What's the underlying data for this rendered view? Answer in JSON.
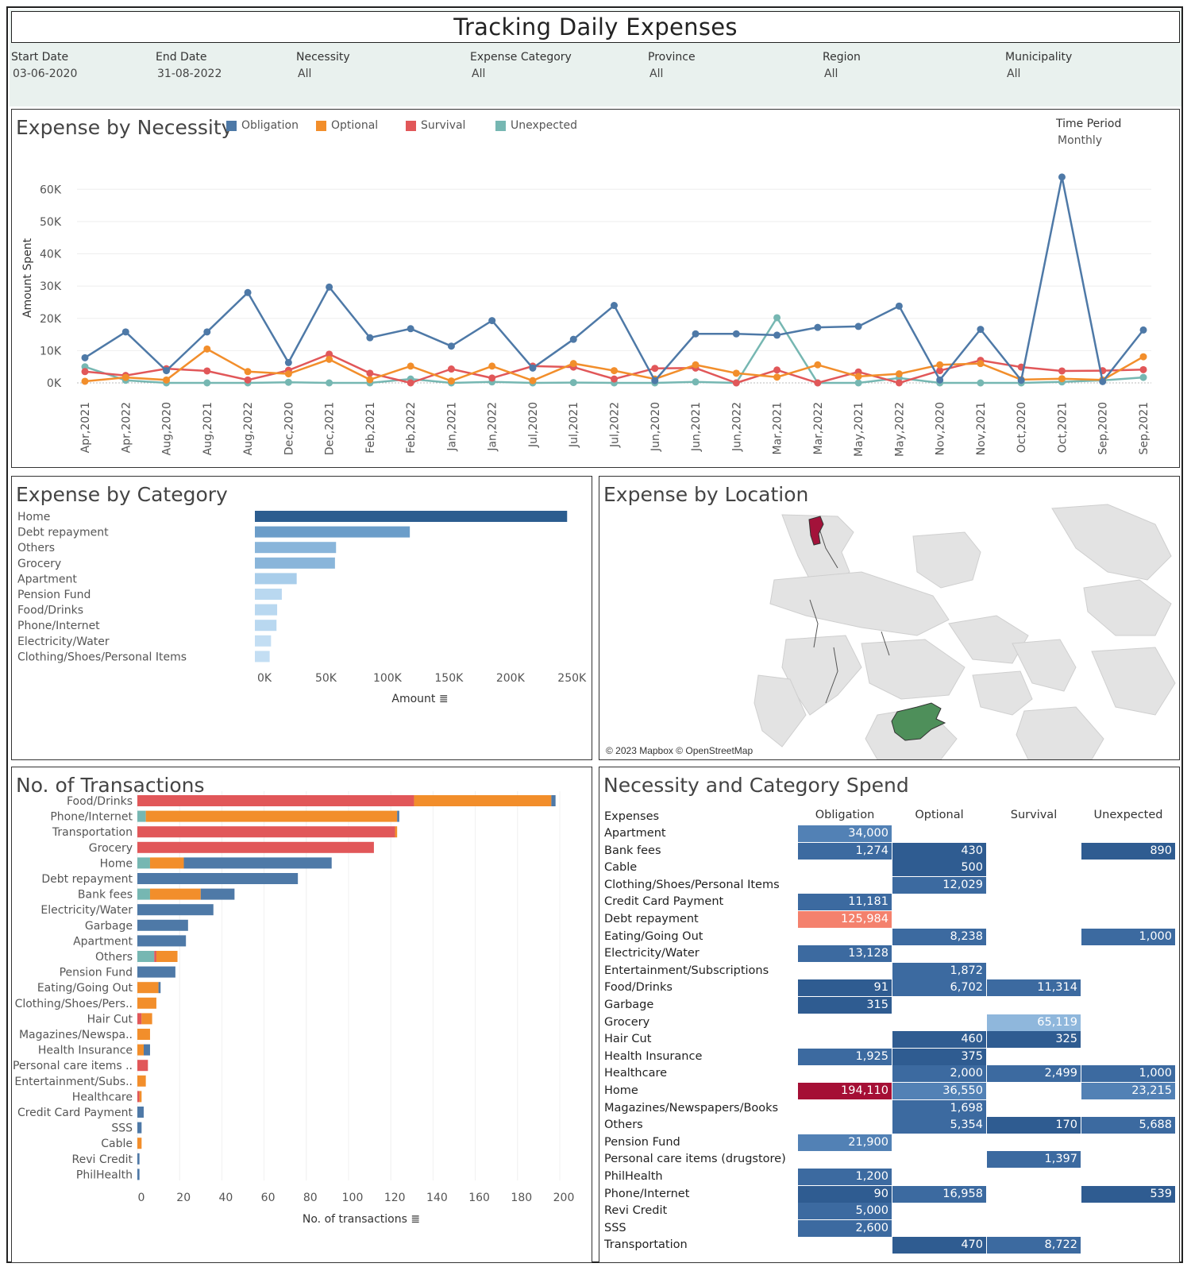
{
  "header": {
    "title": "Tracking Daily Expenses",
    "filters": [
      {
        "label": "Start Date",
        "value": "03-06-2020"
      },
      {
        "label": "End Date",
        "value": "31-08-2022"
      },
      {
        "label": "Necessity",
        "value": "All"
      },
      {
        "label": "Expense Category",
        "value": "All"
      },
      {
        "label": "Province",
        "value": "All"
      },
      {
        "label": "Region",
        "value": "All"
      },
      {
        "label": "Municipality",
        "value": "All"
      }
    ]
  },
  "colors": {
    "Obligation": "#4e79a7",
    "Optional": "#f28e2b",
    "Survival": "#e15759",
    "Unexpected": "#76b7b2"
  },
  "necessity_panel": {
    "title": "Expense by Necessity",
    "legend": [
      "Obligation",
      "Optional",
      "Survival",
      "Unexpected"
    ],
    "time_period_label": "Time Period",
    "time_period_value": "Monthly"
  },
  "category_panel": {
    "title": "Expense by Category"
  },
  "location_panel": {
    "title": "Expense by Location",
    "attribution": "© 2023 Mapbox © OpenStreetMap"
  },
  "transactions_panel": {
    "title": "No. of Transactions"
  },
  "heatmap_panel": {
    "title": "Necessity and Category Spend",
    "row_header": "Expenses",
    "columns": [
      "Obligation",
      "Optional",
      "Survival",
      "Unexpected"
    ],
    "rows": [
      {
        "name": "Apartment",
        "values": [
          "34,000",
          "",
          "",
          ""
        ]
      },
      {
        "name": "Bank fees",
        "values": [
          "1,274",
          "430",
          "",
          "890"
        ]
      },
      {
        "name": "Cable",
        "values": [
          "",
          "500",
          "",
          ""
        ]
      },
      {
        "name": "Clothing/Shoes/Personal Items",
        "values": [
          "",
          "12,029",
          "",
          ""
        ]
      },
      {
        "name": "Credit Card Payment",
        "values": [
          "11,181",
          "",
          "",
          ""
        ]
      },
      {
        "name": "Debt repayment",
        "values": [
          "125,984",
          "",
          "",
          ""
        ]
      },
      {
        "name": "Eating/Going Out",
        "values": [
          "",
          "8,238",
          "",
          "1,000"
        ]
      },
      {
        "name": "Electricity/Water",
        "values": [
          "13,128",
          "",
          "",
          ""
        ]
      },
      {
        "name": "Entertainment/Subscriptions",
        "values": [
          "",
          "1,872",
          "",
          ""
        ]
      },
      {
        "name": "Food/Drinks",
        "values": [
          "91",
          "6,702",
          "11,314",
          ""
        ]
      },
      {
        "name": "Garbage",
        "values": [
          "315",
          "",
          "",
          ""
        ]
      },
      {
        "name": "Grocery",
        "values": [
          "",
          "",
          "65,119",
          ""
        ]
      },
      {
        "name": "Hair Cut",
        "values": [
          "",
          "460",
          "325",
          ""
        ]
      },
      {
        "name": "Health Insurance",
        "values": [
          "1,925",
          "375",
          "",
          ""
        ]
      },
      {
        "name": "Healthcare",
        "values": [
          "",
          "2,000",
          "2,499",
          "1,000"
        ]
      },
      {
        "name": "Home",
        "values": [
          "194,110",
          "36,550",
          "",
          "23,215"
        ]
      },
      {
        "name": "Magazines/Newspapers/Books",
        "values": [
          "",
          "1,698",
          "",
          ""
        ]
      },
      {
        "name": "Others",
        "values": [
          "",
          "5,354",
          "170",
          "5,688"
        ]
      },
      {
        "name": "Pension Fund",
        "values": [
          "21,900",
          "",
          "",
          ""
        ]
      },
      {
        "name": "Personal care items (drugstore)",
        "values": [
          "",
          "",
          "1,397",
          ""
        ]
      },
      {
        "name": "PhilHealth",
        "values": [
          "1,200",
          "",
          "",
          ""
        ]
      },
      {
        "name": "Phone/Internet",
        "values": [
          "90",
          "16,958",
          "",
          "539"
        ]
      },
      {
        "name": "Revi Credit",
        "values": [
          "5,000",
          "",
          "",
          ""
        ]
      },
      {
        "name": "SSS",
        "values": [
          "2,600",
          "",
          "",
          ""
        ]
      },
      {
        "name": "Transportation",
        "values": [
          "",
          "470",
          "8,722",
          ""
        ]
      }
    ]
  },
  "chart_data": [
    {
      "type": "line",
      "title": "Expense by Necessity",
      "ylabel": "Amount Spent",
      "xlabel": "",
      "ylim": [
        0,
        65000
      ],
      "yticks": [
        "0K",
        "10K",
        "20K",
        "30K",
        "40K",
        "50K",
        "60K"
      ],
      "x": [
        "Apr,2021",
        "Apr,2022",
        "Aug,2020",
        "Aug,2021",
        "Aug,2022",
        "Dec,2020",
        "Dec,2021",
        "Feb,2021",
        "Feb,2022",
        "Jan,2021",
        "Jan,2022",
        "Jul,2020",
        "Jul,2021",
        "Jul,2022",
        "Jun,2020",
        "Jun,2021",
        "Jun,2022",
        "Mar,2021",
        "Mar,2022",
        "May,2021",
        "May,2022",
        "Nov,2020",
        "Nov,2021",
        "Oct,2020",
        "Oct,2021",
        "Sep,2020",
        "Sep,2021"
      ],
      "series": [
        {
          "name": "Obligation",
          "values": [
            7800,
            15800,
            3800,
            15800,
            28000,
            6300,
            29700,
            14000,
            16800,
            11400,
            19300,
            4600,
            13500,
            24000,
            700,
            15200,
            15200,
            14800,
            17200,
            17500,
            23800,
            900,
            16600,
            800,
            63800,
            400,
            16400
          ]
        },
        {
          "name": "Optional",
          "values": [
            500,
            1700,
            900,
            10500,
            3500,
            2800,
            7300,
            1000,
            5200,
            600,
            5200,
            700,
            6000,
            3800,
            1200,
            5600,
            3000,
            1800,
            5600,
            2000,
            2800,
            5600,
            6000,
            1000,
            1300,
            900,
            8100
          ]
        },
        {
          "name": "Survival",
          "values": [
            3500,
            2300,
            4400,
            3700,
            900,
            3900,
            8900,
            3000,
            0,
            4300,
            1500,
            5200,
            4900,
            1200,
            4500,
            4600,
            0,
            4000,
            0,
            3400,
            0,
            3800,
            7000,
            4900,
            3700,
            3800,
            4100
          ]
        },
        {
          "name": "Unexpected",
          "values": [
            5000,
            800,
            0,
            0,
            0,
            200,
            0,
            0,
            1200,
            0,
            300,
            0,
            100,
            0,
            0,
            300,
            0,
            20200,
            0,
            0,
            1500,
            0,
            0,
            0,
            300,
            800,
            1700
          ]
        }
      ]
    },
    {
      "type": "bar",
      "title": "Expense by Category",
      "xlabel": "Amount",
      "ylabel": "",
      "xlim": [
        0,
        250000
      ],
      "xticks": [
        "0K",
        "50K",
        "100K",
        "150K",
        "200K",
        "250K"
      ],
      "categories": [
        "Home",
        "Debt repayment",
        "Others",
        "Grocery",
        "Apartment",
        "Pension Fund",
        "Food/Drinks",
        "Phone/Internet",
        "Electricity/Water",
        "Clothing/Shoes/Personal Items"
      ],
      "values": [
        253875,
        125984,
        66000,
        65119,
        34000,
        21900,
        18107,
        17587,
        13128,
        12029
      ]
    },
    {
      "type": "bar",
      "title": "No. of Transactions",
      "xlabel": "No. of transactions",
      "ylabel": "",
      "xlim": [
        0,
        200
      ],
      "xticks": [
        "0",
        "20",
        "40",
        "60",
        "80",
        "100",
        "120",
        "140",
        "160",
        "180",
        "200"
      ],
      "categories": [
        "Food/Drinks",
        "Phone/Internet",
        "Transportation",
        "Grocery",
        "Home",
        "Debt repayment",
        "Bank fees",
        "Electricity/Water",
        "Garbage",
        "Apartment",
        "Others",
        "Pension Fund",
        "Eating/Going Out",
        "Clothing/Shoes/Pers..",
        "Hair Cut",
        "Magazines/Newspa..",
        "Health Insurance",
        "Personal care items ..",
        "Entertainment/Subs..",
        "Healthcare",
        "Credit Card Payment",
        "SSS",
        "Cable",
        "Revi Credit",
        "PhilHealth"
      ],
      "series": [
        {
          "name": "Unexpected",
          "values": [
            0,
            4,
            0,
            0,
            6,
            0,
            6,
            0,
            0,
            0,
            8,
            0,
            0,
            0,
            0,
            0,
            0,
            0,
            0,
            0,
            0,
            0,
            0,
            0,
            0
          ]
        },
        {
          "name": "Survival",
          "values": [
            131,
            0,
            122,
            112,
            0,
            0,
            0,
            0,
            0,
            0,
            1,
            0,
            0,
            0,
            2,
            0,
            0,
            5,
            0,
            1,
            0,
            0,
            0,
            0,
            0
          ]
        },
        {
          "name": "Optional",
          "values": [
            65,
            119,
            1,
            0,
            16,
            0,
            24,
            0,
            0,
            0,
            10,
            0,
            10,
            9,
            5,
            6,
            3,
            0,
            4,
            1,
            0,
            0,
            2,
            0,
            0
          ]
        },
        {
          "name": "Obligation",
          "values": [
            2,
            1,
            0,
            0,
            70,
            76,
            16,
            36,
            24,
            23,
            0,
            18,
            1,
            0,
            0,
            0,
            3,
            0,
            0,
            0,
            3,
            2,
            0,
            1,
            1
          ]
        }
      ]
    }
  ]
}
